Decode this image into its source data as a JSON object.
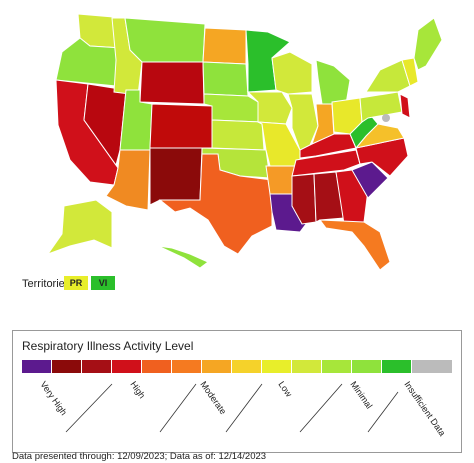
{
  "territories": {
    "label": "Territories",
    "items": [
      "PR",
      "VI"
    ]
  },
  "legend": {
    "title": "Respiratory Illness Activity Level",
    "labels": [
      "Very High",
      "High",
      "Moderate",
      "Low",
      "Minimal",
      "Insufficient Data"
    ]
  },
  "footer": "Data presented through: 12/09/2023; Data as of: 12/14/2023"
}
